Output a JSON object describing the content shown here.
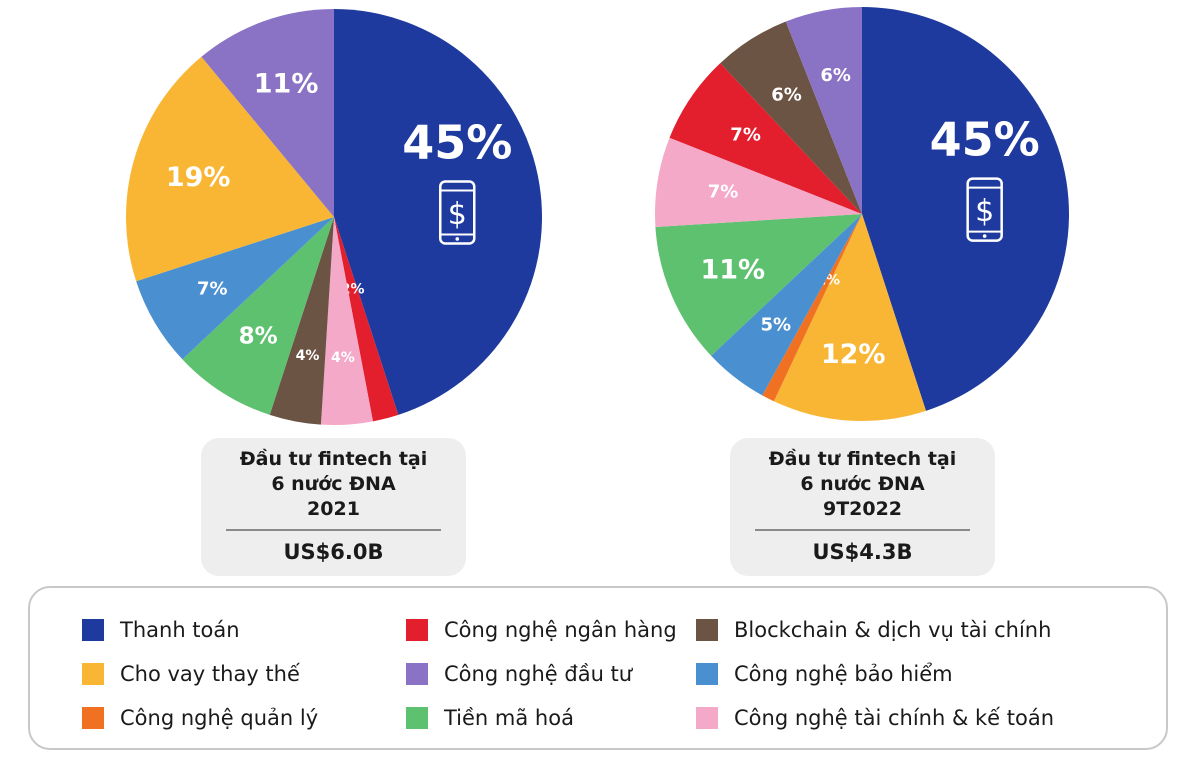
{
  "chart_data": [
    {
      "type": "pie",
      "slices": [
        {
          "label": "Thanh toán",
          "value": 45,
          "display": "45%",
          "color": "#1f3a9e"
        },
        {
          "label": "Công nghệ ngân hàng",
          "value": 2,
          "display": "2%",
          "color": "#e31e2d"
        },
        {
          "label": "Công nghệ tài chính & kế toán",
          "value": 4,
          "display": "4%",
          "color": "#f5a9c9"
        },
        {
          "label": "Blockchain & dịch vụ tài chính",
          "value": 4,
          "display": "4%",
          "color": "#6b5444"
        },
        {
          "label": "Tiền mã hoá",
          "value": 8,
          "display": "8%",
          "color": "#5ec170"
        },
        {
          "label": "Công nghệ bảo hiểm",
          "value": 7,
          "display": "7%",
          "color": "#4a90d0"
        },
        {
          "label": "Cho vay thay thế",
          "value": 19,
          "display": "19%",
          "color": "#f8b634"
        },
        {
          "label": "Công nghệ đầu tư",
          "value": 11,
          "display": "11%",
          "color": "#8a72c4"
        }
      ],
      "icon": "smartphone-dollar-icon"
    },
    {
      "type": "pie",
      "slices": [
        {
          "label": "Thanh toán",
          "value": 45,
          "display": "45%",
          "color": "#1f3a9e"
        },
        {
          "label": "Cho vay thay thế",
          "value": 12,
          "display": "12%",
          "color": "#f8b634"
        },
        {
          "label": "Công nghệ quản lý",
          "value": 1,
          "display": "1%",
          "color": "#f07122"
        },
        {
          "label": "Công nghệ bảo hiểm",
          "value": 5,
          "display": "5%",
          "color": "#4a90d0"
        },
        {
          "label": "Tiền mã hoá",
          "value": 11,
          "display": "11%",
          "color": "#5ec170"
        },
        {
          "label": "Công nghệ tài chính & kế toán",
          "value": 7,
          "display": "7%",
          "color": "#f5a9c9"
        },
        {
          "label": "Công nghệ ngân hàng",
          "value": 7,
          "display": "7%",
          "color": "#e31e2d"
        },
        {
          "label": "Blockchain & dịch vụ tài chính",
          "value": 6,
          "display": "6%",
          "color": "#6b5444"
        },
        {
          "label": "Công nghệ đầu tư",
          "value": 6,
          "display": "6%",
          "color": "#8a72c4"
        }
      ],
      "icon": "smartphone-dollar-icon"
    }
  ],
  "summary_2021": {
    "title_line1": "Đầu tư fintech tại",
    "title_line2": "6 nước ĐNA",
    "title_line3": "2021",
    "total": "US$6.0B"
  },
  "summary_2022": {
    "title_line1": "Đầu tư fintech tại",
    "title_line2": "6 nước ĐNA",
    "title_line3": "9T2022",
    "total": "US$4.3B"
  },
  "legend": [
    {
      "label": "Thanh toán",
      "color": "#1f3a9e"
    },
    {
      "label": "Công nghệ ngân hàng",
      "color": "#e31e2d"
    },
    {
      "label": "Blockchain & dịch vụ tài chính",
      "color": "#6b5444"
    },
    {
      "label": "Cho vay thay thế",
      "color": "#f8b634"
    },
    {
      "label": "Công nghệ đầu tư",
      "color": "#8a72c4"
    },
    {
      "label": "Công nghệ bảo hiểm",
      "color": "#4a90d0"
    },
    {
      "label": "Công nghệ quản lý",
      "color": "#f07122"
    },
    {
      "label": "Tiền mã hoá",
      "color": "#5ec170"
    },
    {
      "label": "Công nghệ tài chính & kế toán",
      "color": "#f5a9c9"
    }
  ]
}
